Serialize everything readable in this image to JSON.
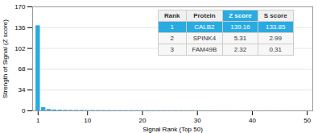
{
  "chart_data": {
    "type": "bar",
    "xlabel": "Signal Rank (Top 50)",
    "ylabel": "Strength of Signal (Z score)",
    "x": [
      1,
      2,
      3,
      4,
      5,
      6,
      7,
      8,
      9,
      10,
      11,
      12,
      13,
      14,
      15,
      16,
      17,
      18,
      19,
      20,
      21,
      22,
      23,
      24,
      25,
      26,
      27,
      28,
      29,
      30,
      31,
      32,
      33,
      34,
      35,
      36,
      37,
      38,
      39,
      40,
      41,
      42,
      43,
      44,
      45,
      46,
      47,
      48,
      49,
      50
    ],
    "values": [
      139.16,
      5.31,
      2.32,
      1.5,
      1.2,
      1.0,
      0.9,
      0.8,
      0.75,
      0.7,
      0.65,
      0.6,
      0.58,
      0.55,
      0.52,
      0.5,
      0.48,
      0.46,
      0.44,
      0.42,
      0.4,
      0.38,
      0.36,
      0.34,
      0.32,
      0.3,
      0.28,
      0.26,
      0.24,
      0.22,
      0.2,
      0.19,
      0.18,
      0.17,
      0.16,
      0.15,
      0.14,
      0.13,
      0.12,
      0.11,
      0.1,
      0.09,
      0.08,
      0.07,
      0.06,
      0.05,
      0.04,
      0.03,
      0.02,
      0.01
    ],
    "color": "#29abe2",
    "xlim": [
      0,
      51
    ],
    "ylim": [
      0,
      170
    ],
    "xticks": [
      1,
      10,
      20,
      30,
      40,
      50
    ],
    "yticks": [
      0,
      34,
      68,
      102,
      136,
      170
    ],
    "grid": true,
    "table": {
      "columns": [
        "Rank",
        "Protein",
        "Z score",
        "S score"
      ],
      "rows": [
        [
          "1",
          "CALB2",
          "139.16",
          "133.85"
        ],
        [
          "2",
          "SPINK4",
          "5.31",
          "2.99"
        ],
        [
          "3",
          "FAM49B",
          "2.32",
          "0.31"
        ]
      ]
    }
  }
}
